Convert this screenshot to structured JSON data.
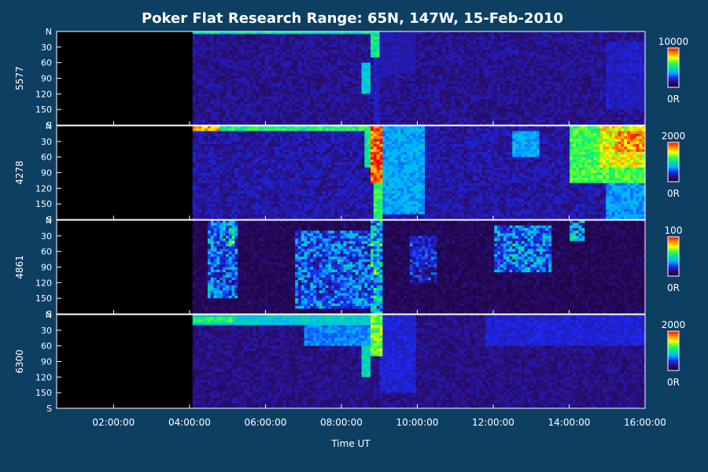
{
  "figure": {
    "title": "Poker Flat Research Range: 65N, 147W, 15-Feb-2010",
    "xlabel": "Time UT",
    "background": "#0d3f63",
    "frame_color": "#ffffff",
    "text_color": "#ffffff"
  },
  "chart_data": {
    "type": "heatmap",
    "title": "Poker Flat Research Range: 65N, 147W, 15-Feb-2010",
    "xlabel": "Time UT",
    "x_range_hours": [
      0.5,
      16.0
    ],
    "x_ticks": [
      {
        "hour": 2,
        "label": "02:00:00"
      },
      {
        "hour": 4,
        "label": "04:00:00"
      },
      {
        "hour": 6,
        "label": "06:00:00"
      },
      {
        "hour": 8,
        "label": "08:00:00"
      },
      {
        "hour": 10,
        "label": "10:00:00"
      },
      {
        "hour": 12,
        "label": "12:00:00"
      },
      {
        "hour": 14,
        "label": "14:00:00"
      },
      {
        "hour": 16,
        "label": "16:00:00"
      }
    ],
    "y_range_deg": [
      0,
      180
    ],
    "y_ticks": [
      {
        "deg": 0,
        "label": "N"
      },
      {
        "deg": 30,
        "label": "30"
      },
      {
        "deg": 60,
        "label": "60"
      },
      {
        "deg": 90,
        "label": "90"
      },
      {
        "deg": 120,
        "label": "120"
      },
      {
        "deg": 150,
        "label": "150"
      },
      {
        "deg": 180,
        "label": "S"
      }
    ],
    "colormap": [
      "#1a0033",
      "#2a0d6e",
      "#1b2cff",
      "#00b4ff",
      "#00e0a0",
      "#3cff3c",
      "#ffff00",
      "#ff8c00",
      "#ff0000"
    ],
    "data_start_hour": 4.08,
    "panels": [
      {
        "ylabel": "5577",
        "cbar_max_label": "10000",
        "cbar_min_label": "0R",
        "base": 0.15,
        "features": [
          {
            "t0": 4.1,
            "t1": 8.8,
            "d0": 0,
            "d1": 6,
            "level": 0.5
          },
          {
            "t0": 8.75,
            "t1": 9.0,
            "d0": 0,
            "d1": 50,
            "level": 0.55
          },
          {
            "t0": 8.55,
            "t1": 8.75,
            "d0": 60,
            "d1": 120,
            "level": 0.45
          },
          {
            "t0": 8.85,
            "t1": 9.0,
            "d0": 0,
            "d1": 180,
            "level": 0.2
          },
          {
            "t0": 9.0,
            "t1": 10.0,
            "d0": 0,
            "d1": 80,
            "level": 0.18
          },
          {
            "t0": 15.0,
            "t1": 16.0,
            "d0": 20,
            "d1": 150,
            "level": 0.2
          }
        ]
      },
      {
        "ylabel": "4278",
        "cbar_max_label": "2000",
        "cbar_min_label": "0R",
        "base": 0.17,
        "features": [
          {
            "t0": 4.1,
            "t1": 8.8,
            "d0": 0,
            "d1": 12,
            "level": 0.58
          },
          {
            "t0": 4.1,
            "t1": 4.8,
            "d0": 0,
            "d1": 8,
            "level": 0.82
          },
          {
            "t0": 8.6,
            "t1": 8.9,
            "d0": 10,
            "d1": 80,
            "level": 0.55
          },
          {
            "t0": 8.78,
            "t1": 9.05,
            "d0": 0,
            "d1": 110,
            "level": 0.96
          },
          {
            "t0": 8.85,
            "t1": 9.1,
            "d0": 100,
            "d1": 180,
            "level": 0.6
          },
          {
            "t0": 9.1,
            "t1": 10.2,
            "d0": 0,
            "d1": 170,
            "level": 0.38
          },
          {
            "t0": 12.5,
            "t1": 13.2,
            "d0": 10,
            "d1": 60,
            "level": 0.38
          },
          {
            "t0": 14.0,
            "t1": 16.0,
            "d0": 0,
            "d1": 110,
            "level": 0.62
          },
          {
            "t0": 14.8,
            "t1": 16.0,
            "d0": 0,
            "d1": 80,
            "level": 0.78
          },
          {
            "t0": 15.2,
            "t1": 16.0,
            "d0": 10,
            "d1": 50,
            "level": 0.88
          },
          {
            "t0": 15.0,
            "t1": 16.0,
            "d0": 100,
            "d1": 180,
            "level": 0.36
          }
        ]
      },
      {
        "ylabel": "4861",
        "cbar_max_label": "100",
        "cbar_min_label": "0R",
        "base": 0.08,
        "noisy": true,
        "features": [
          {
            "t0": 4.5,
            "t1": 5.3,
            "d0": 0,
            "d1": 150,
            "level": 0.3
          },
          {
            "t0": 5.0,
            "t1": 5.2,
            "d0": 0,
            "d1": 50,
            "level": 0.45
          },
          {
            "t0": 6.8,
            "t1": 8.9,
            "d0": 20,
            "d1": 170,
            "level": 0.3
          },
          {
            "t0": 8.8,
            "t1": 9.1,
            "d0": 0,
            "d1": 180,
            "level": 0.42
          },
          {
            "t0": 9.8,
            "t1": 10.5,
            "d0": 30,
            "d1": 120,
            "level": 0.22
          },
          {
            "t0": 12.0,
            "t1": 13.5,
            "d0": 10,
            "d1": 100,
            "level": 0.32
          },
          {
            "t0": 14.0,
            "t1": 14.4,
            "d0": 0,
            "d1": 40,
            "level": 0.35
          }
        ]
      },
      {
        "ylabel": "6300",
        "cbar_max_label": "2000",
        "cbar_min_label": "0R",
        "base": 0.14,
        "features": [
          {
            "t0": 4.1,
            "t1": 8.8,
            "d0": 0,
            "d1": 18,
            "level": 0.45
          },
          {
            "t0": 4.1,
            "t1": 5.2,
            "d0": 5,
            "d1": 15,
            "level": 0.62
          },
          {
            "t0": 7.0,
            "t1": 8.9,
            "d0": 20,
            "d1": 60,
            "level": 0.34
          },
          {
            "t0": 8.5,
            "t1": 8.75,
            "d0": 60,
            "d1": 120,
            "level": 0.48
          },
          {
            "t0": 8.75,
            "t1": 9.05,
            "d0": 0,
            "d1": 80,
            "level": 0.68
          },
          {
            "t0": 9.0,
            "t1": 10.0,
            "d0": 0,
            "d1": 150,
            "level": 0.22
          },
          {
            "t0": 11.8,
            "t1": 16.0,
            "d0": 0,
            "d1": 60,
            "level": 0.22
          }
        ]
      }
    ]
  }
}
